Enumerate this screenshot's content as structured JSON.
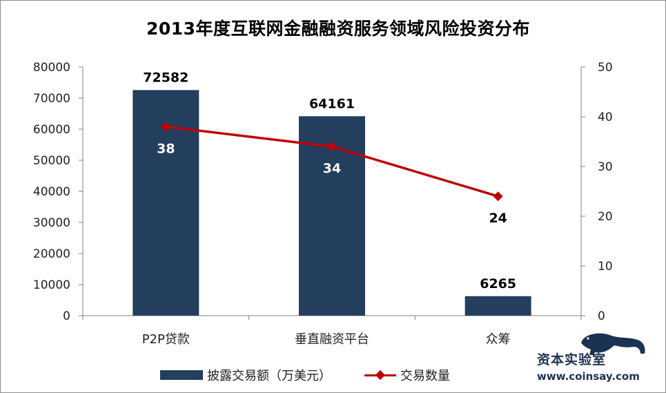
{
  "chart_data": {
    "type": "bar",
    "title": "2013年度互联网金融融资服务领域风险投资分布",
    "categories": [
      "P2P贷款",
      "垂直融资平台",
      "众筹"
    ],
    "series": [
      {
        "name": "披露交易额（万美元）",
        "kind": "bar",
        "axis": "left",
        "values": [
          72582,
          64161,
          6265
        ],
        "labels": [
          "72582",
          "64161",
          "6265"
        ],
        "color": "#243e5e"
      },
      {
        "name": "交易数量",
        "kind": "line",
        "axis": "right",
        "values": [
          38,
          34,
          24
        ],
        "labels": [
          "38",
          "34",
          "24"
        ],
        "color": "#c00000"
      }
    ],
    "y_left": {
      "lim": [
        0,
        80000
      ],
      "ticks": [
        "0",
        "10000",
        "20000",
        "30000",
        "40000",
        "50000",
        "60000",
        "70000",
        "80000"
      ]
    },
    "y_right": {
      "lim": [
        0,
        50
      ],
      "ticks": [
        "0",
        "10",
        "20",
        "30",
        "40",
        "50"
      ]
    },
    "grid": false,
    "legend_position": "bottom"
  },
  "watermark": {
    "text_cn": "资本实验室",
    "url": "www.coinsay.com"
  }
}
